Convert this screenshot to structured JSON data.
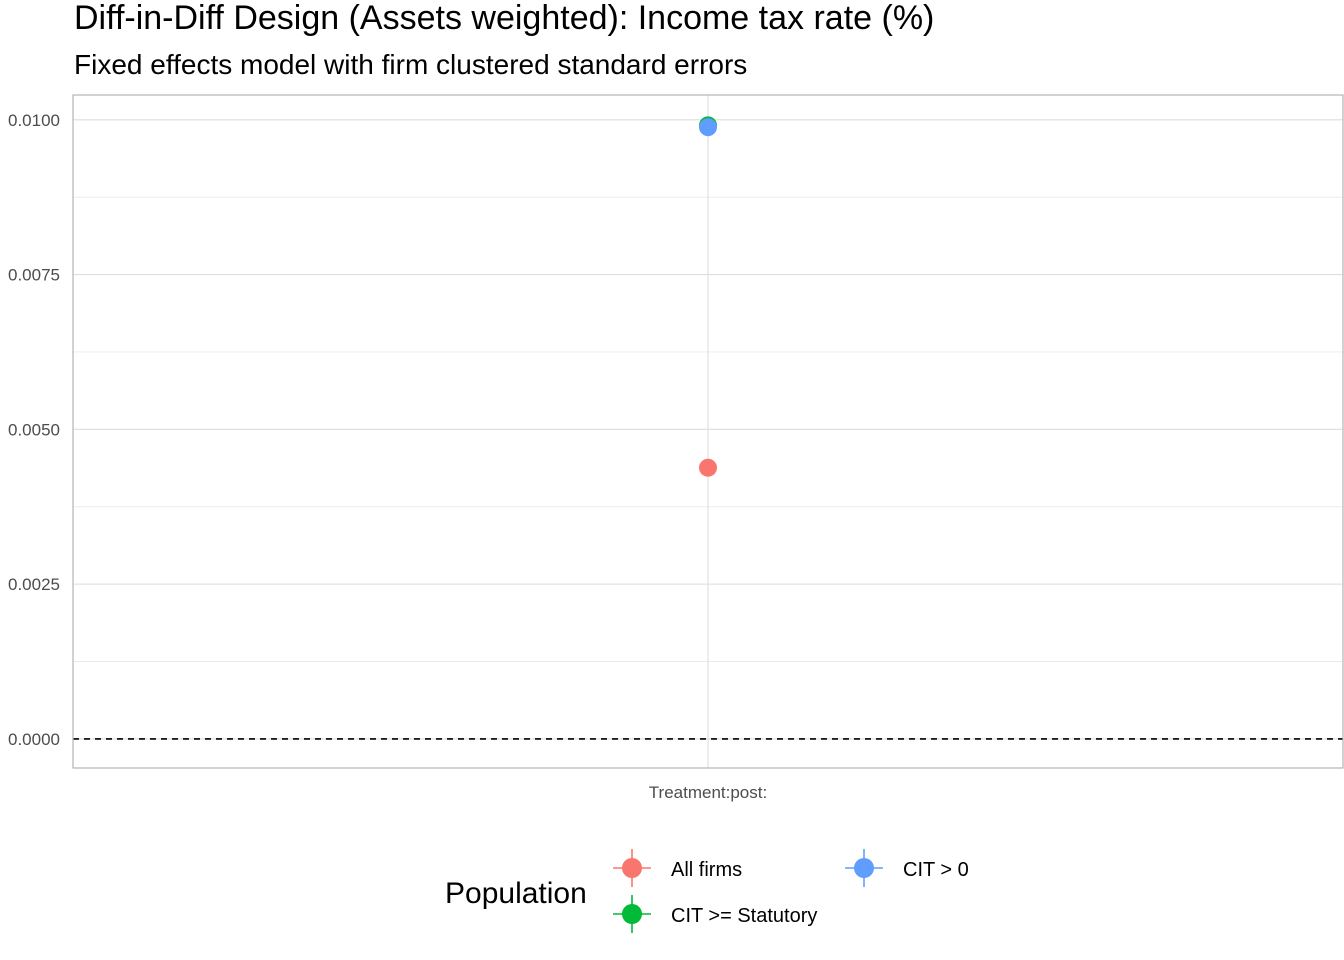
{
  "chart_data": {
    "type": "scatter",
    "title": "Diff-in-Diff Design (Assets weighted): Income tax rate  (%)",
    "subtitle": "Fixed effects model with firm clustered standard errors",
    "xlabel": "",
    "ylabel": "",
    "categories": [
      "Treatment:post:"
    ],
    "ylim": [
      -0.00047,
      0.0104
    ],
    "yticks": [
      0.0,
      0.0025,
      0.005,
      0.0075,
      0.01
    ],
    "ytick_labels": [
      "0.0000",
      "0.0025",
      "0.0050",
      "0.0075",
      "0.0100"
    ],
    "reference_line": {
      "y": 0,
      "style": "dashed"
    },
    "grid": true,
    "legend": {
      "title": "Population",
      "position": "bottom"
    },
    "series": [
      {
        "name": "All firms",
        "color": "#F8766D",
        "values": [
          0.00438
        ]
      },
      {
        "name": "CIT >= Statutory",
        "color": "#00BA38",
        "values": [
          0.00991
        ]
      },
      {
        "name": "CIT > 0",
        "color": "#619CFF",
        "values": [
          0.00988
        ]
      }
    ]
  }
}
